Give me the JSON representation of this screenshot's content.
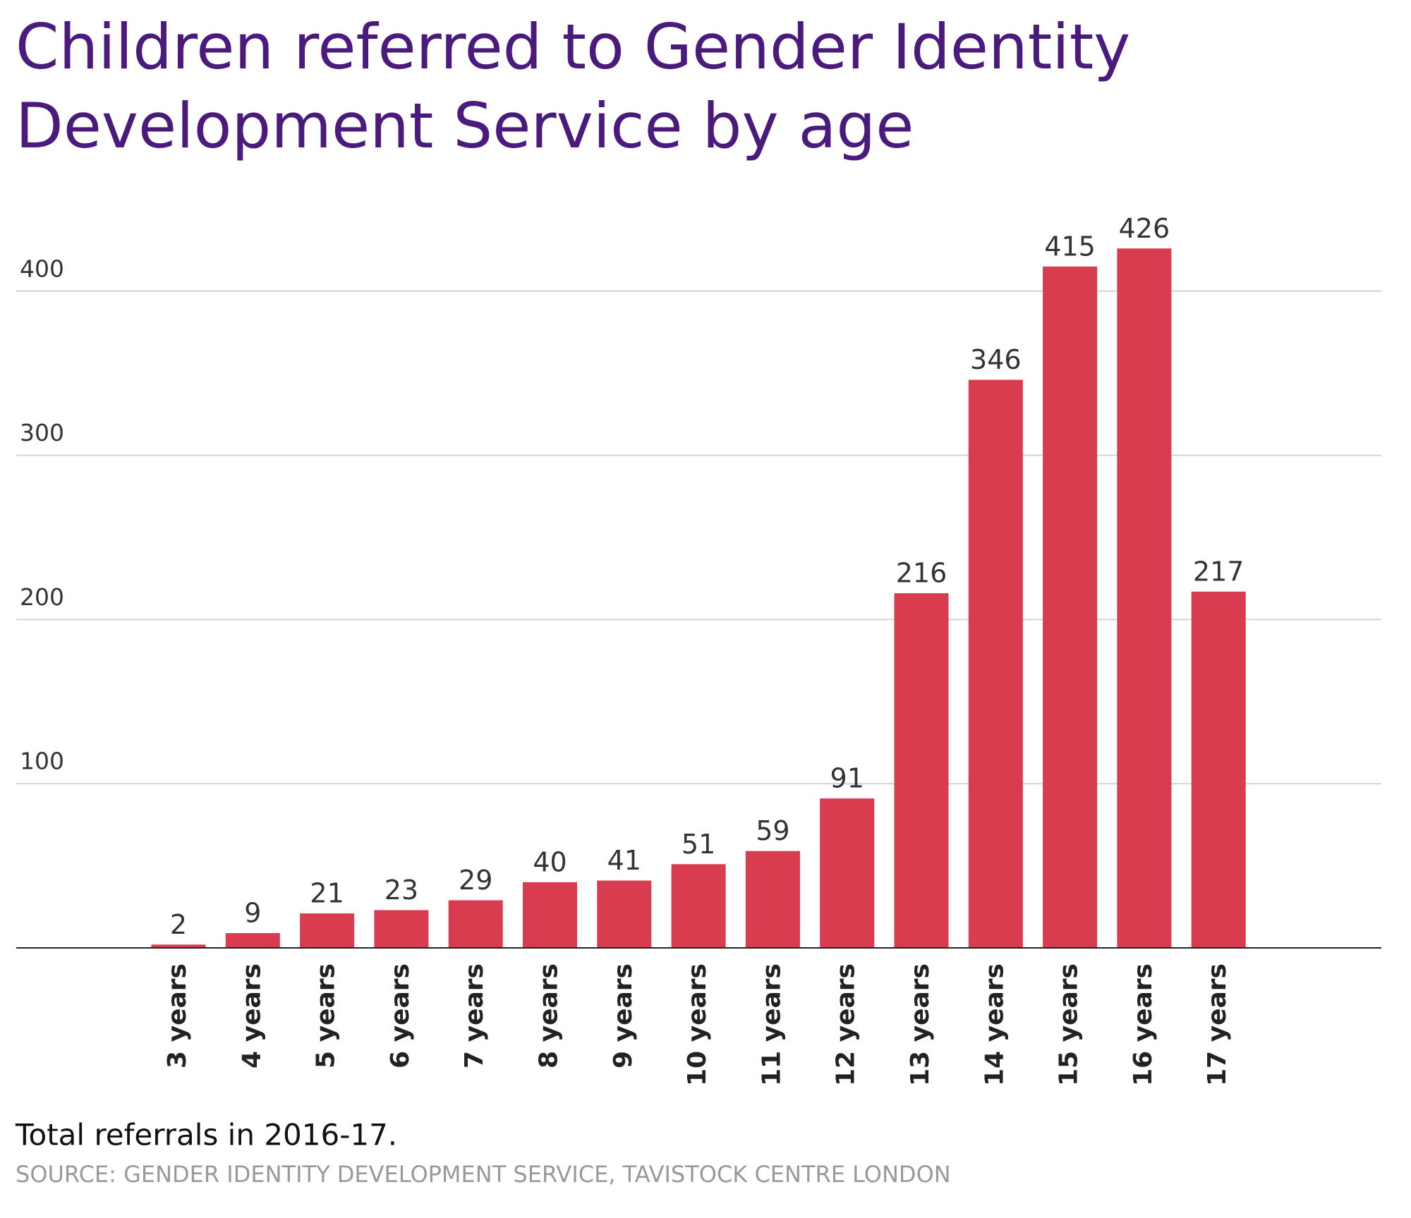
{
  "chart_data": {
    "type": "bar",
    "title_lines": [
      "Children referred to Gender Identity",
      "Development Service by age"
    ],
    "categories": [
      "3 years",
      "4 years",
      "5 years",
      "6 years",
      "7 years",
      "8 years",
      "9 years",
      "10 years",
      "11 years",
      "12 years",
      "13 years",
      "14 years",
      "15 years",
      "16 years",
      "17 years"
    ],
    "values": [
      2,
      9,
      21,
      23,
      29,
      40,
      41,
      51,
      59,
      91,
      216,
      346,
      415,
      426,
      217
    ],
    "color": "#d93b4f",
    "ylim": [
      0,
      450
    ],
    "yticks": [
      100,
      200,
      300,
      400
    ],
    "grid": true,
    "note": "Total referrals in 2016-17.",
    "source": "SOURCE: GENDER IDENTITY DEVELOPMENT SERVICE, TAVISTOCK CENTRE LONDON"
  }
}
